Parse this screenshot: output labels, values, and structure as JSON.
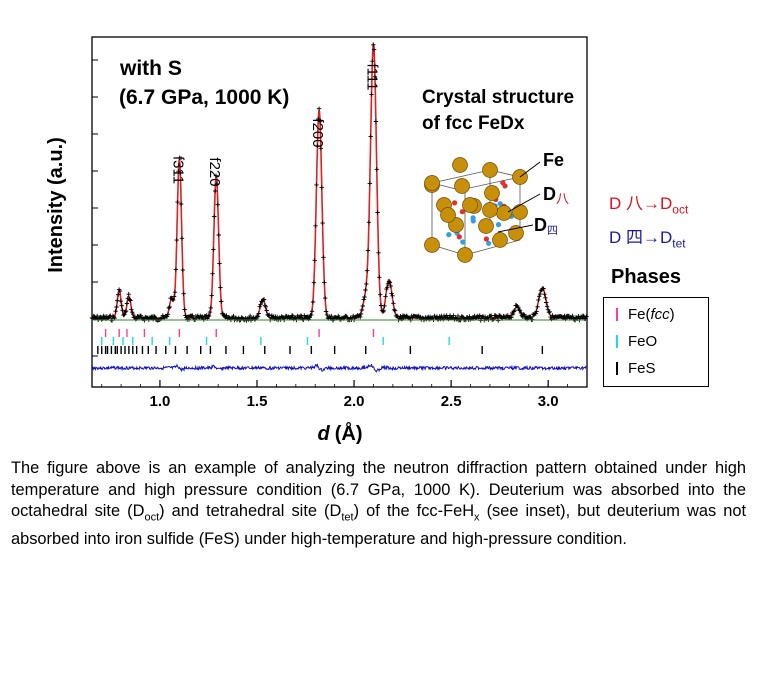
{
  "chart_data": {
    "type": "line",
    "title": "with S",
    "subtitle": "(6.7 GPa, 1000 K)",
    "xlabel_italic": "d",
    "xlabel_unit": "(Å)",
    "ylabel": "Intensity (a.u.)",
    "xlim": [
      0.65,
      3.2
    ],
    "xticks": [
      "1.0",
      "1.5",
      "2.0",
      "2.5",
      "3.0"
    ],
    "xtick_values": [
      1.0,
      1.5,
      2.0,
      2.5,
      3.0
    ],
    "peaks": [
      {
        "d": 1.1,
        "height": 0.58,
        "label": "f311"
      },
      {
        "d": 1.29,
        "height": 0.52,
        "label": "f220"
      },
      {
        "d": 1.82,
        "height": 0.76,
        "label": "f200"
      },
      {
        "d": 2.1,
        "height": 1.0,
        "label": "f111"
      },
      {
        "d": 0.79,
        "height": 0.1,
        "label": ""
      },
      {
        "d": 0.84,
        "height": 0.08,
        "label": ""
      },
      {
        "d": 1.06,
        "height": 0.07,
        "label": ""
      },
      {
        "d": 1.53,
        "height": 0.07,
        "label": ""
      },
      {
        "d": 2.06,
        "height": 0.07,
        "label": ""
      },
      {
        "d": 2.18,
        "height": 0.14,
        "label": ""
      },
      {
        "d": 2.84,
        "height": 0.04,
        "label": ""
      },
      {
        "d": 2.97,
        "height": 0.11,
        "label": ""
      }
    ],
    "series": [
      {
        "name": "observed",
        "color": "#000000"
      },
      {
        "name": "calculated",
        "color": "#e02020"
      },
      {
        "name": "difference",
        "color": "#1010c0"
      }
    ],
    "tick_rows": [
      {
        "name": "Fe(fcc)",
        "color": "#ff3aa0",
        "positions": [
          0.72,
          0.79,
          0.83,
          0.92,
          1.1,
          1.29,
          1.82,
          2.1
        ]
      },
      {
        "name": "FeO",
        "color": "#22d8e8",
        "positions": [
          0.7,
          0.76,
          0.81,
          0.86,
          0.96,
          1.05,
          1.24,
          1.52,
          1.76,
          2.15,
          2.49
        ]
      },
      {
        "name": "FeS",
        "color": "#000000",
        "positions": [
          0.68,
          0.7,
          0.72,
          0.73,
          0.75,
          0.77,
          0.78,
          0.8,
          0.82,
          0.84,
          0.86,
          0.88,
          0.91,
          0.94,
          0.98,
          1.03,
          1.08,
          1.14,
          1.21,
          1.26,
          1.34,
          1.43,
          1.54,
          1.67,
          1.78,
          1.9,
          2.06,
          2.29,
          2.66,
          2.97
        ]
      }
    ]
  },
  "inset": {
    "title_line1": "Crystal structure",
    "title_line2": "of fcc FeDx",
    "label_fe": "Fe",
    "label_d_oct_base": "D",
    "label_d_oct_sub": "八",
    "label_d_tet_base": "D",
    "label_d_tet_sub": "四",
    "atom_fe_color": "#c8900a",
    "atom_oct_color": "#e03030",
    "atom_tet_color": "#30a0e0"
  },
  "annotations": {
    "red_prefix": "D 八→D",
    "red_sub": "oct",
    "blue_prefix": "D 四→D",
    "blue_sub": "tet"
  },
  "legend": {
    "title": "Phases",
    "items": [
      {
        "label_pre": "Fe(",
        "label_italic": "fcc",
        "label_post": ")",
        "color": "#ff3aa0"
      },
      {
        "label_pre": "FeO",
        "label_italic": "",
        "label_post": "",
        "color": "#22d8e8"
      },
      {
        "label_pre": "FeS",
        "label_italic": "",
        "label_post": "",
        "color": "#000000"
      }
    ]
  },
  "caption": {
    "p1": "The figure above is an example of analyzing the neutron diffraction pattern obtained under high temperature and high pressure condition (6.7 GPa, 1000 K). Deuterium was absorbed into the octahedral site (D",
    "oct": "oct",
    "p2": ") and tetrahedral site (D",
    "tet": "tet",
    "p3": ") of the fcc-FeH",
    "x": "x",
    "p4": " (see inset), but deuterium was not absorbed into iron sulfide (FeS) under high-temperature and high-pressure condition."
  }
}
